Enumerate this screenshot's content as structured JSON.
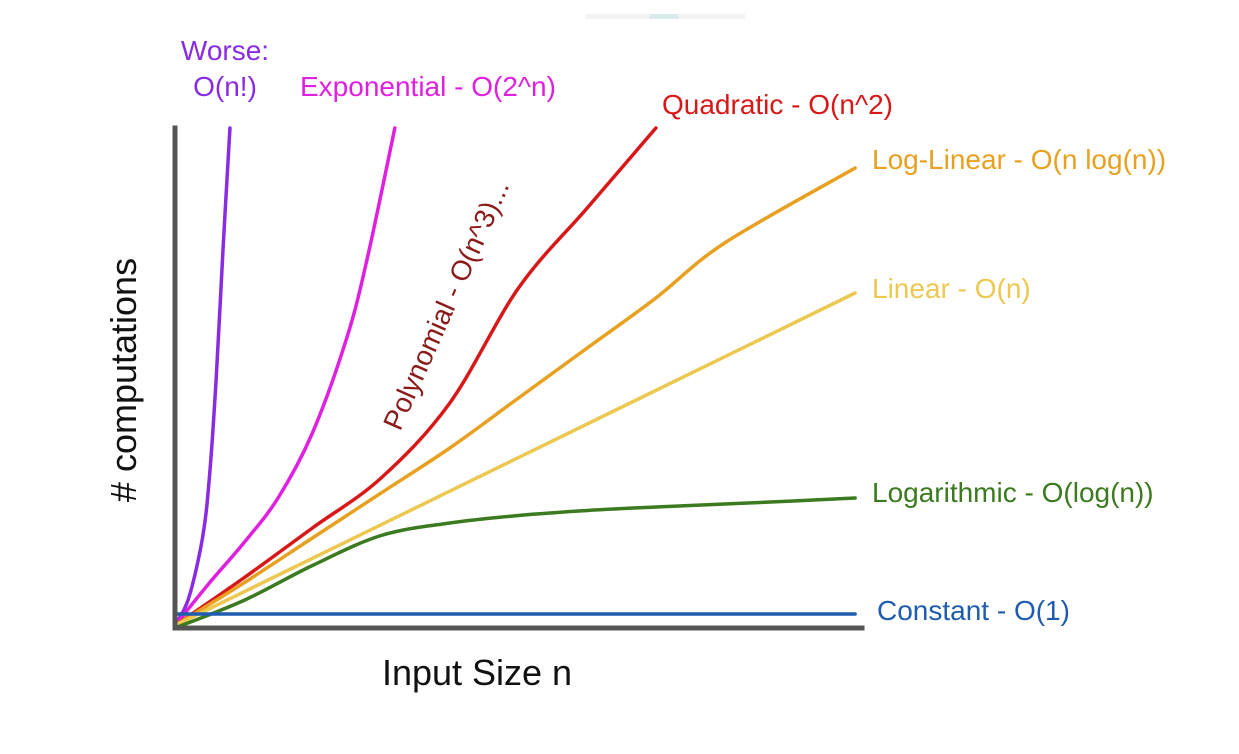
{
  "chart_data": {
    "type": "line",
    "title": "",
    "xlabel": "Input Size n",
    "ylabel": "# computations",
    "xlim": [
      0,
      10
    ],
    "ylim": [
      0,
      10
    ],
    "grid": false,
    "legend": "inline-end-labels",
    "series": [
      {
        "name": "Worse: O(n!)",
        "name_lines": [
          "Worse:",
          "O(n!)"
        ],
        "color": "#8a2be2",
        "x": [
          0,
          0.2,
          0.4,
          0.5,
          0.6,
          0.7,
          0.8
        ],
        "y": [
          0.05,
          0.6,
          1.8,
          3.0,
          5.0,
          7.6,
          10.0
        ]
      },
      {
        "name": "Exponential - O(2^n)",
        "color": "#e020e0",
        "x": [
          0,
          0.5,
          1.0,
          1.5,
          2.0,
          2.5,
          2.8,
          3.2
        ],
        "y": [
          0.05,
          0.9,
          1.7,
          2.6,
          3.9,
          5.8,
          7.4,
          10.0
        ]
      },
      {
        "name": "Polynomial - O(n^3)...",
        "color": "#8b1a1a",
        "x": [],
        "y": []
      },
      {
        "name": "Quadratic - O(n^2)",
        "color": "#d81818",
        "x": [
          0,
          1,
          2,
          3,
          4,
          5,
          6,
          7.0
        ],
        "y": [
          0.05,
          1.0,
          2.0,
          3.0,
          4.5,
          6.8,
          8.4,
          10.0
        ]
      },
      {
        "name": "Log-Linear - O(n log(n))",
        "color": "#e8a020",
        "x": [
          0,
          1,
          2,
          3,
          4,
          5,
          6,
          7,
          8,
          9.9
        ],
        "y": [
          0.05,
          0.9,
          1.8,
          2.7,
          3.6,
          4.6,
          5.6,
          6.6,
          7.7,
          9.2
        ]
      },
      {
        "name": "Linear - O(n)",
        "color": "#ecc850",
        "x": [
          0,
          9.9
        ],
        "y": [
          0.05,
          6.7
        ]
      },
      {
        "name": "Logarithmic - O(log(n))",
        "color": "#3b7a1e",
        "x": [
          0,
          1,
          2,
          3,
          4,
          5,
          6,
          7,
          8,
          9,
          9.9
        ],
        "y": [
          0,
          0.55,
          1.25,
          1.85,
          2.1,
          2.25,
          2.35,
          2.42,
          2.48,
          2.54,
          2.6
        ]
      },
      {
        "name": "Constant - O(1)",
        "color": "#1f5cb0",
        "x": [
          0,
          9.9
        ],
        "y": [
          0.28,
          0.28
        ]
      }
    ]
  }
}
